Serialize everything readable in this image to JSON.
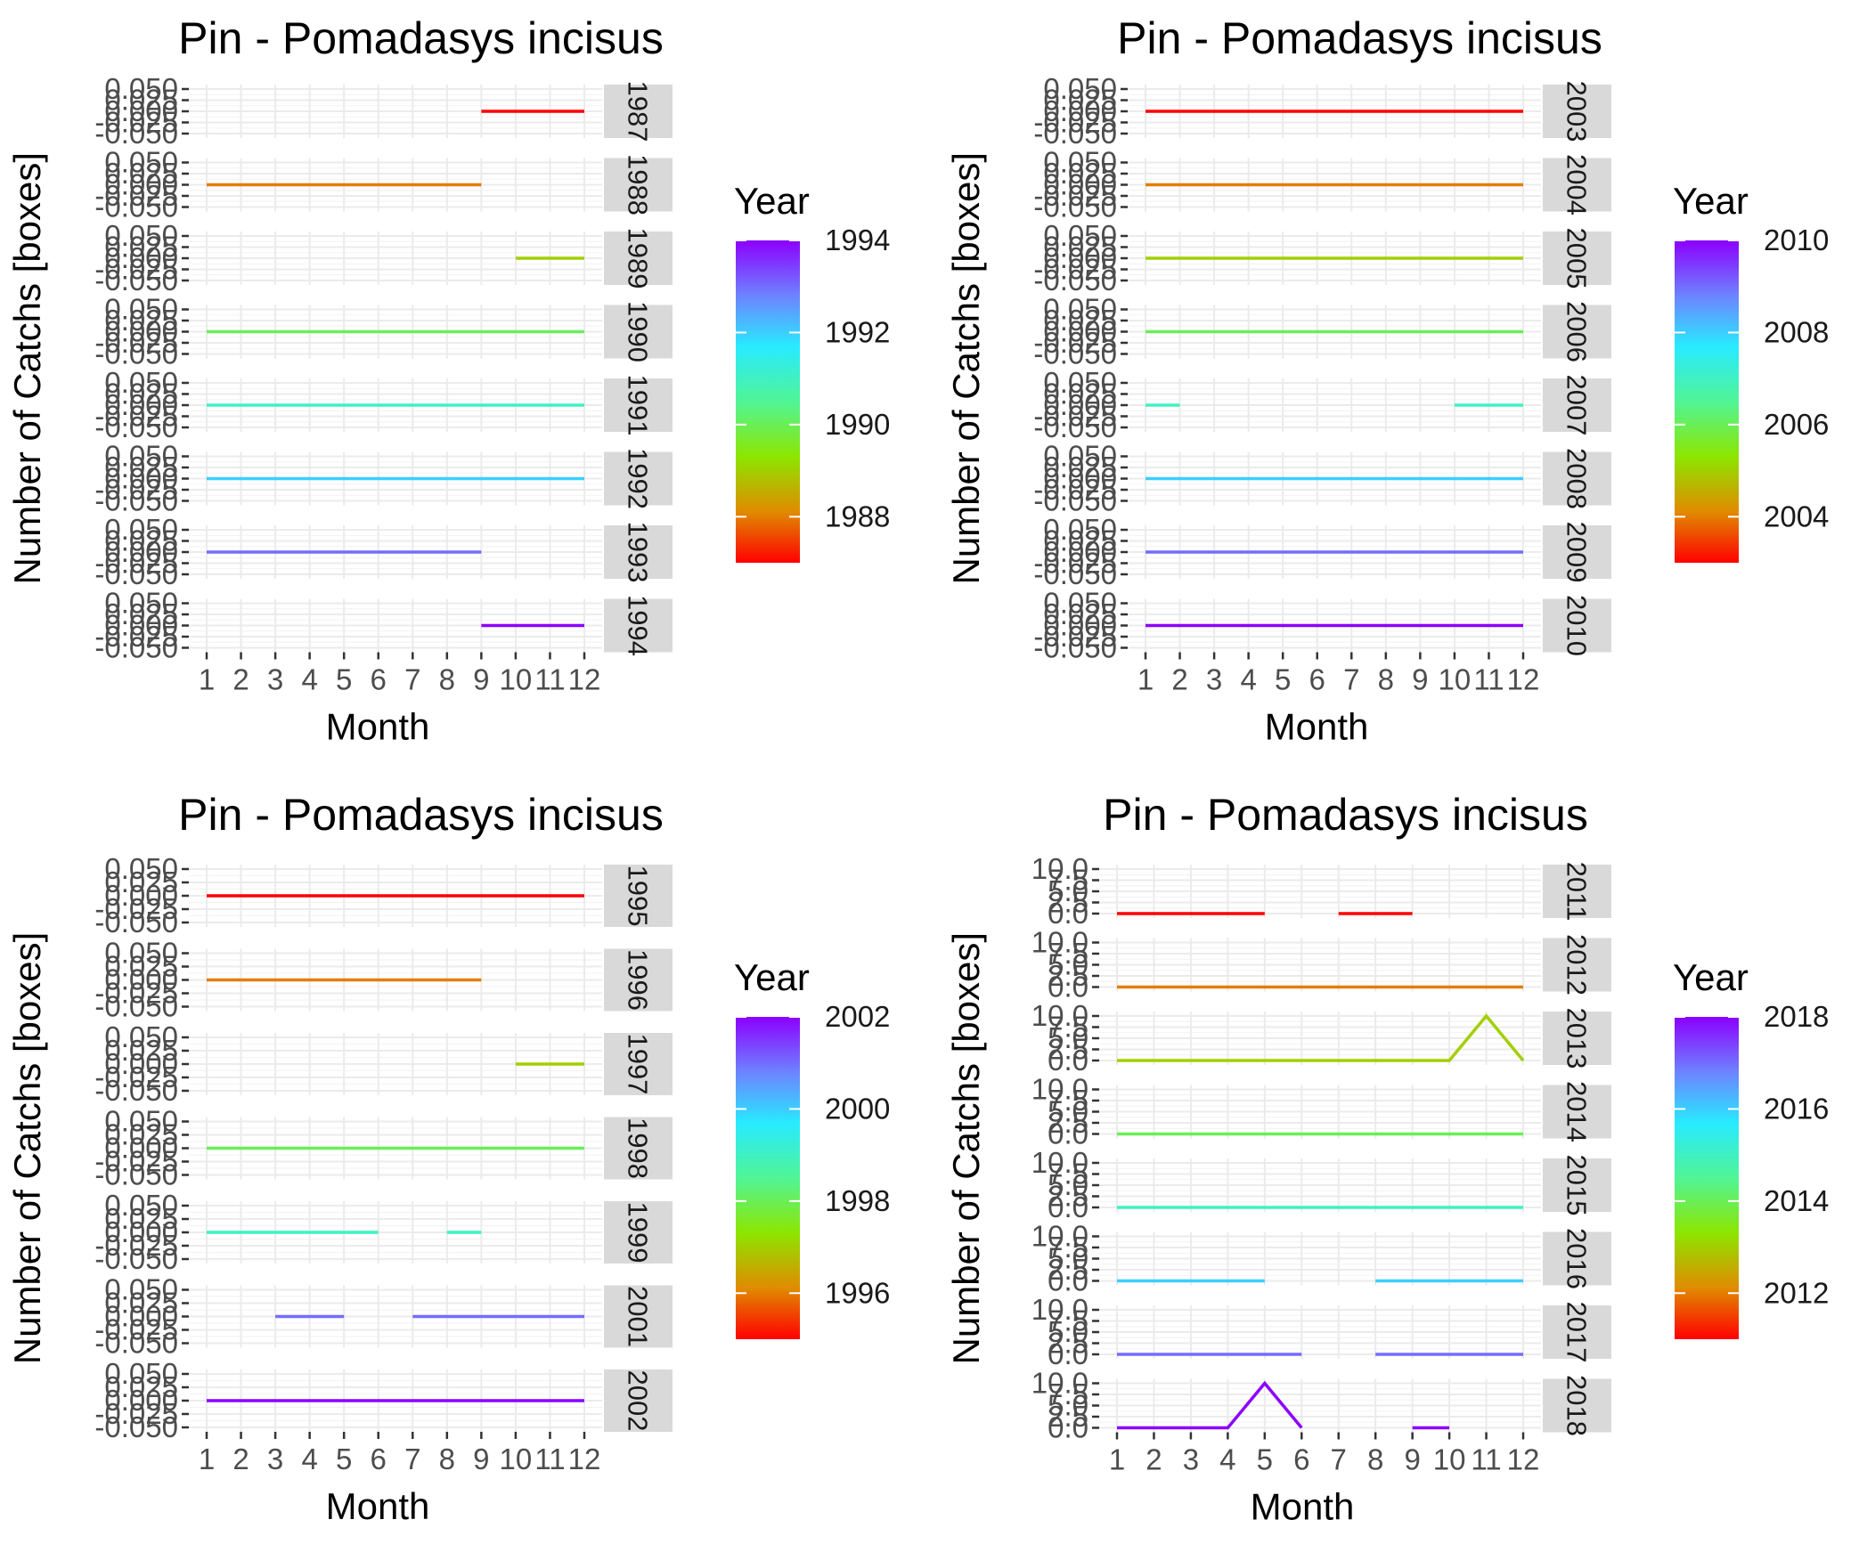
{
  "chart_data": [
    {
      "type": "line",
      "title": "Pin - Pomadasys incisus",
      "xlabel": "Month",
      "ylabel": "Number of Catchs [boxes]",
      "x": [
        1,
        2,
        3,
        4,
        5,
        6,
        7,
        8,
        9,
        10,
        11,
        12
      ],
      "ylim": [
        -0.05,
        0.05
      ],
      "yticks": [
        "-0.050",
        "-0.025",
        "0.000",
        "0.025",
        "0.050"
      ],
      "legend": {
        "title": "Year",
        "min": 1987,
        "max": 1994,
        "labels": [
          "1988",
          "1990",
          "1992",
          "1994"
        ],
        "label_values": [
          1988,
          1990,
          1992,
          1994
        ],
        "position": "right"
      },
      "panels": [
        {
          "strip": "1987",
          "year": 1987,
          "segments": [
            {
              "x": [
                9,
                12
              ],
              "y": [
                0,
                0
              ]
            }
          ]
        },
        {
          "strip": "1988",
          "year": 1988,
          "segments": [
            {
              "x": [
                1,
                9
              ],
              "y": [
                0,
                0
              ]
            }
          ]
        },
        {
          "strip": "1989",
          "year": 1989,
          "segments": [
            {
              "x": [
                10,
                12
              ],
              "y": [
                0,
                0
              ]
            }
          ]
        },
        {
          "strip": "1990",
          "year": 1990,
          "segments": [
            {
              "x": [
                1,
                12
              ],
              "y": [
                0,
                0
              ]
            }
          ]
        },
        {
          "strip": "1991",
          "year": 1991,
          "segments": [
            {
              "x": [
                1,
                12
              ],
              "y": [
                0,
                0
              ]
            }
          ]
        },
        {
          "strip": "1992",
          "year": 1992,
          "segments": [
            {
              "x": [
                1,
                12
              ],
              "y": [
                0,
                0
              ]
            }
          ]
        },
        {
          "strip": "1993",
          "year": 1993,
          "segments": [
            {
              "x": [
                1,
                9
              ],
              "y": [
                0,
                0
              ]
            }
          ]
        },
        {
          "strip": "1994",
          "year": 1994,
          "segments": [
            {
              "x": [
                9,
                12
              ],
              "y": [
                0,
                0
              ]
            }
          ]
        }
      ]
    },
    {
      "type": "line",
      "title": "Pin - Pomadasys incisus",
      "xlabel": "Month",
      "ylabel": "Number of Catchs [boxes]",
      "x": [
        1,
        2,
        3,
        4,
        5,
        6,
        7,
        8,
        9,
        10,
        11,
        12
      ],
      "ylim": [
        -0.05,
        0.05
      ],
      "yticks": [
        "-0.050",
        "-0.025",
        "0.000",
        "0.025",
        "0.050"
      ],
      "legend": {
        "title": "Year",
        "min": 2003,
        "max": 2010,
        "labels": [
          "2004",
          "2006",
          "2008",
          "2010"
        ],
        "label_values": [
          2004,
          2006,
          2008,
          2010
        ],
        "position": "right"
      },
      "panels": [
        {
          "strip": "2003",
          "year": 2003,
          "segments": [
            {
              "x": [
                1,
                12
              ],
              "y": [
                0,
                0
              ]
            }
          ]
        },
        {
          "strip": "2004",
          "year": 2004,
          "segments": [
            {
              "x": [
                1,
                12
              ],
              "y": [
                0,
                0
              ]
            }
          ]
        },
        {
          "strip": "2005",
          "year": 2005,
          "segments": [
            {
              "x": [
                1,
                12
              ],
              "y": [
                0,
                0
              ]
            }
          ]
        },
        {
          "strip": "2006",
          "year": 2006,
          "segments": [
            {
              "x": [
                1,
                12
              ],
              "y": [
                0,
                0
              ]
            }
          ]
        },
        {
          "strip": "2007",
          "year": 2007,
          "segments": [
            {
              "x": [
                1,
                2
              ],
              "y": [
                0,
                0
              ]
            },
            {
              "x": [
                10,
                12
              ],
              "y": [
                0,
                0
              ]
            }
          ]
        },
        {
          "strip": "2008",
          "year": 2008,
          "segments": [
            {
              "x": [
                1,
                12
              ],
              "y": [
                0,
                0
              ]
            }
          ]
        },
        {
          "strip": "2009",
          "year": 2009,
          "segments": [
            {
              "x": [
                1,
                12
              ],
              "y": [
                0,
                0
              ]
            }
          ]
        },
        {
          "strip": "2010",
          "year": 2010,
          "segments": [
            {
              "x": [
                1,
                12
              ],
              "y": [
                0,
                0
              ]
            }
          ]
        }
      ]
    },
    {
      "type": "line",
      "title": "Pin - Pomadasys incisus",
      "xlabel": "Month",
      "ylabel": "Number of Catchs [boxes]",
      "x": [
        1,
        2,
        3,
        4,
        5,
        6,
        7,
        8,
        9,
        10,
        11,
        12
      ],
      "ylim": [
        -0.05,
        0.05
      ],
      "yticks": [
        "-0.050",
        "-0.025",
        "0.000",
        "0.025",
        "0.050"
      ],
      "legend": {
        "title": "Year",
        "min": 1995,
        "max": 2002,
        "labels": [
          "1996",
          "1998",
          "2000",
          "2002"
        ],
        "label_values": [
          1996,
          1998,
          2000,
          2002
        ],
        "position": "right"
      },
      "panels": [
        {
          "strip": "1995",
          "year": 1995,
          "segments": [
            {
              "x": [
                1,
                12
              ],
              "y": [
                0,
                0
              ]
            }
          ]
        },
        {
          "strip": "1996",
          "year": 1996,
          "segments": [
            {
              "x": [
                1,
                9
              ],
              "y": [
                0,
                0
              ]
            }
          ]
        },
        {
          "strip": "1997",
          "year": 1997,
          "segments": [
            {
              "x": [
                10,
                12
              ],
              "y": [
                0,
                0
              ]
            }
          ]
        },
        {
          "strip": "1998",
          "year": 1998,
          "segments": [
            {
              "x": [
                1,
                12
              ],
              "y": [
                0,
                0
              ]
            }
          ]
        },
        {
          "strip": "1999",
          "year": 1999,
          "segments": [
            {
              "x": [
                1,
                6
              ],
              "y": [
                0,
                0
              ]
            },
            {
              "x": [
                8,
                9
              ],
              "y": [
                0,
                0
              ]
            }
          ]
        },
        {
          "strip": "2001",
          "year": 2001,
          "segments": [
            {
              "x": [
                3,
                5
              ],
              "y": [
                0,
                0
              ]
            },
            {
              "x": [
                7,
                12
              ],
              "y": [
                0,
                0
              ]
            }
          ]
        },
        {
          "strip": "2002",
          "year": 2002,
          "segments": [
            {
              "x": [
                1,
                12
              ],
              "y": [
                0,
                0
              ]
            }
          ]
        }
      ]
    },
    {
      "type": "line",
      "title": "Pin - Pomadasys incisus",
      "xlabel": "Month",
      "ylabel": "Number of Catchs [boxes]",
      "x": [
        1,
        2,
        3,
        4,
        5,
        6,
        7,
        8,
        9,
        10,
        11,
        12
      ],
      "ylim": [
        0,
        10
      ],
      "yticks": [
        "0.0",
        "2.5",
        "5.0",
        "7.5",
        "10.0"
      ],
      "legend": {
        "title": "Year",
        "min": 2011,
        "max": 2018,
        "labels": [
          "2012",
          "2014",
          "2016",
          "2018"
        ],
        "label_values": [
          2012,
          2014,
          2016,
          2018
        ],
        "position": "right"
      },
      "panels": [
        {
          "strip": "2011",
          "year": 2011,
          "segments": [
            {
              "x": [
                1,
                5
              ],
              "y": [
                0,
                0
              ]
            },
            {
              "x": [
                7,
                9
              ],
              "y": [
                0,
                0
              ]
            }
          ]
        },
        {
          "strip": "2012",
          "year": 2012,
          "segments": [
            {
              "x": [
                1,
                12
              ],
              "y": [
                0,
                0
              ]
            }
          ]
        },
        {
          "strip": "2013",
          "year": 2013,
          "segments": [
            {
              "x": [
                1,
                10,
                11,
                12
              ],
              "y": [
                0,
                0,
                10,
                0
              ]
            }
          ]
        },
        {
          "strip": "2014",
          "year": 2014,
          "segments": [
            {
              "x": [
                1,
                12
              ],
              "y": [
                0,
                0
              ]
            }
          ]
        },
        {
          "strip": "2015",
          "year": 2015,
          "segments": [
            {
              "x": [
                1,
                12
              ],
              "y": [
                0,
                0
              ]
            }
          ]
        },
        {
          "strip": "2016",
          "year": 2016,
          "segments": [
            {
              "x": [
                1,
                5
              ],
              "y": [
                0,
                0
              ]
            },
            {
              "x": [
                8,
                12
              ],
              "y": [
                0,
                0
              ]
            }
          ]
        },
        {
          "strip": "2017",
          "year": 2017,
          "segments": [
            {
              "x": [
                1,
                6
              ],
              "y": [
                0,
                0
              ]
            },
            {
              "x": [
                8,
                12
              ],
              "y": [
                0,
                0
              ]
            }
          ]
        },
        {
          "strip": "2018",
          "year": 2018,
          "segments": [
            {
              "x": [
                1,
                4,
                5,
                6
              ],
              "y": [
                0,
                0,
                10,
                0
              ]
            },
            {
              "x": [
                9,
                10
              ],
              "y": [
                0,
                0
              ]
            }
          ]
        }
      ]
    }
  ]
}
